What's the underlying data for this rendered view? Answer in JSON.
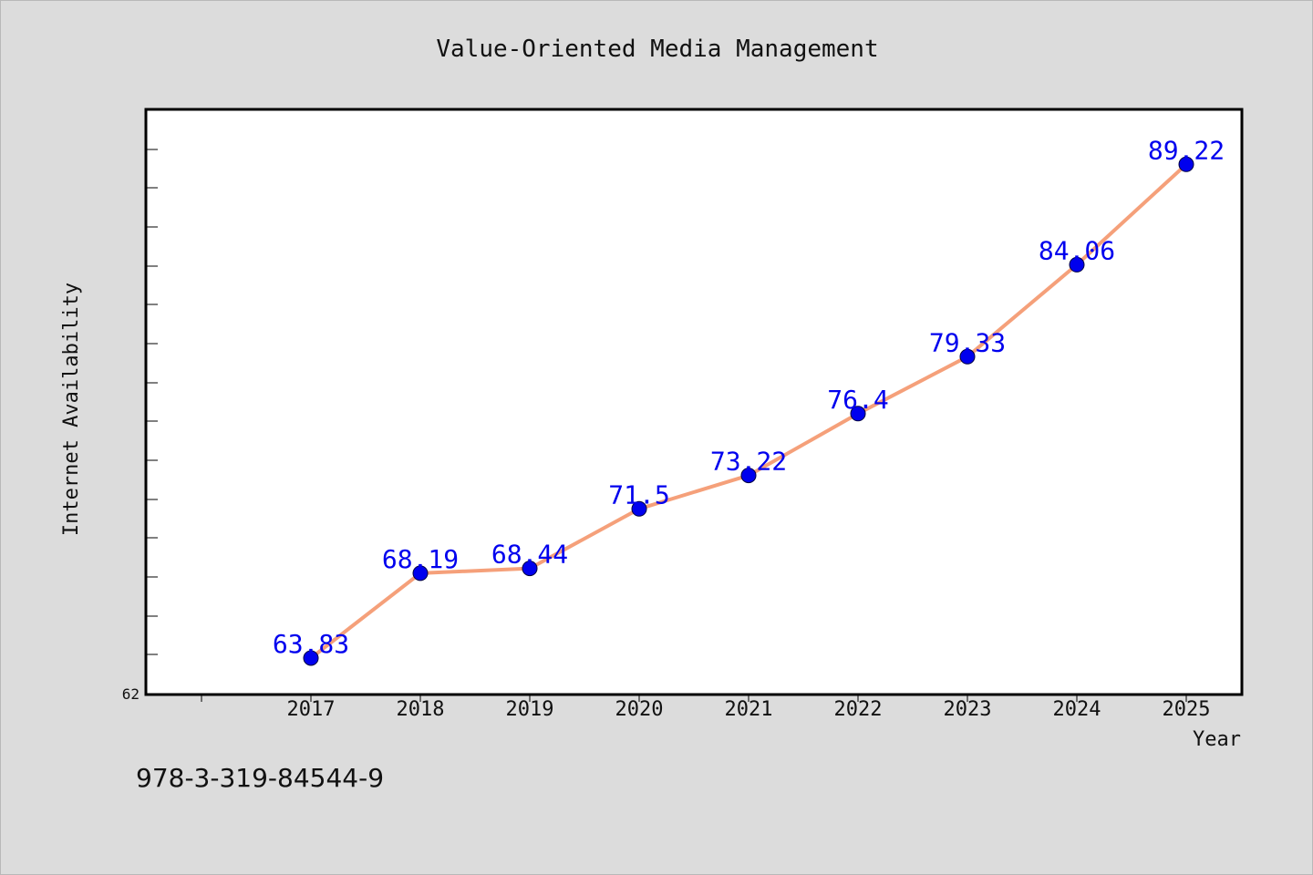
{
  "chart_data": {
    "type": "line",
    "title": "Value-Oriented Media Management",
    "xlabel": "Year",
    "ylabel": "Internet Availability",
    "categories": [
      "2017",
      "2018",
      "2019",
      "2020",
      "2021",
      "2022",
      "2023",
      "2024",
      "2025"
    ],
    "series": [
      {
        "values": [
          63.83,
          68.19,
          68.44,
          71.5,
          73.22,
          76.4,
          79.33,
          84.06,
          89.22
        ],
        "labels": [
          "63.83",
          "68.19",
          "68.44",
          "71.5",
          "73.22",
          "76.4",
          "79.33",
          "84.06",
          "89.22"
        ]
      }
    ],
    "ylim": [
      62,
      92
    ],
    "ytick_labels": [
      "62"
    ],
    "grid": false,
    "colors": {
      "line": "#f5a07a",
      "marker": "#0000ee",
      "label": "#0000ee",
      "plot_bg": "#ffffff",
      "page_bg": "#dcdcdc"
    }
  },
  "footer": {
    "code": "978-3-319-84544-9"
  }
}
